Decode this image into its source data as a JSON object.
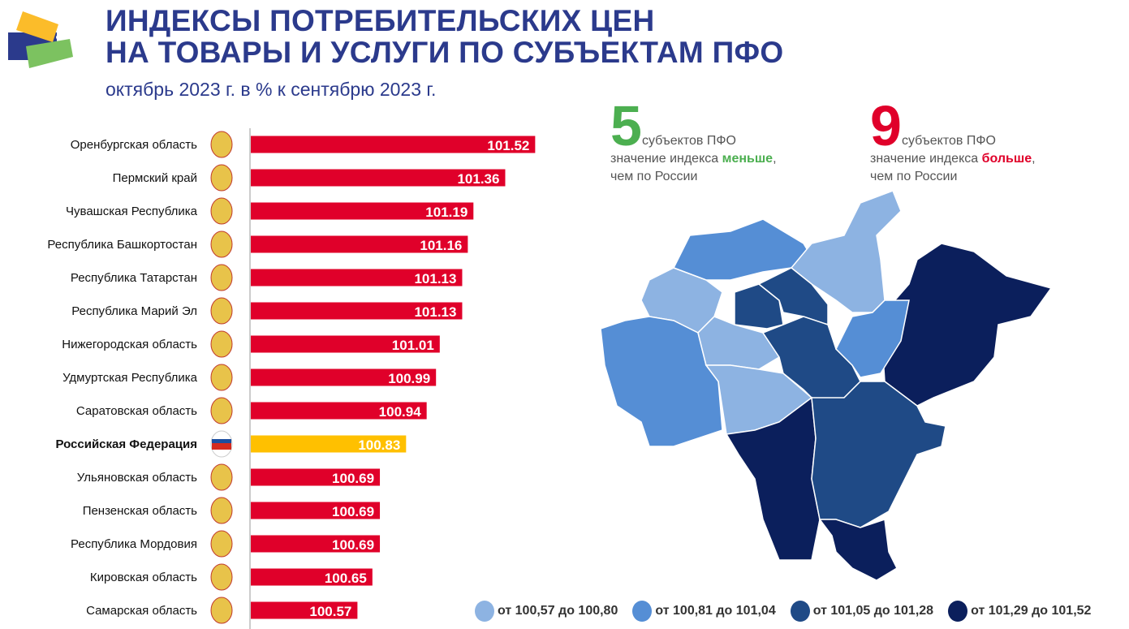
{
  "header": {
    "title_line1": "ИНДЕКСЫ ПОТРЕБИТЕЛЬСКИХ ЦЕН",
    "title_line2": "НА ТОВАРЫ И УСЛУГИ ПО СУБЪЕКТАМ ПФО",
    "subtitle": "октябрь 2023 г. в % к сентябрю 2023 г."
  },
  "stats": {
    "less": {
      "number": "5",
      "unit": "субъектов  ПФО",
      "line2_pre": "значение индекса ",
      "line2_em": "меньше",
      "line2_post": ",",
      "line3": "чем по России",
      "color": "#4caf50"
    },
    "more": {
      "number": "9",
      "unit": "субъектов  ПФО",
      "line2_pre": "значение индекса ",
      "line2_em": "больше",
      "line2_post": ",",
      "line3": "чем по России",
      "color": "#e0002a"
    }
  },
  "legend": [
    {
      "label": "от 100,57 до 100,80",
      "color": "#8db3e2"
    },
    {
      "label": "от 100,81 до 101,04",
      "color": "#558ed5"
    },
    {
      "label": "от 101,05 до 101,28",
      "color": "#1f4a86"
    },
    {
      "label": "от 101,29 до 101,52",
      "color": "#0b1f5c"
    }
  ],
  "chart_data": {
    "type": "bar",
    "orientation": "horizontal",
    "xlim": [
      100,
      101.6
    ],
    "categories": [
      "Оренбургская область",
      "Пермский край",
      "Чувашская Республика",
      "Республика Башкортостан",
      "Республика Татарстан",
      "Республика Марий Эл",
      "Нижегородская область",
      "Удмуртская Республика",
      "Саратовская область",
      "Российская Федерация",
      "Ульяновская область",
      "Пензенская область",
      "Республика Мордовия",
      "Кировская область",
      "Самарская область"
    ],
    "values": [
      101.52,
      101.36,
      101.19,
      101.16,
      101.13,
      101.13,
      101.01,
      100.99,
      100.94,
      100.83,
      100.69,
      100.69,
      100.69,
      100.65,
      100.57
    ],
    "highlight": "Российская Федерация",
    "colors": {
      "bar": "#e0002a",
      "highlight": "#ffc000"
    }
  }
}
